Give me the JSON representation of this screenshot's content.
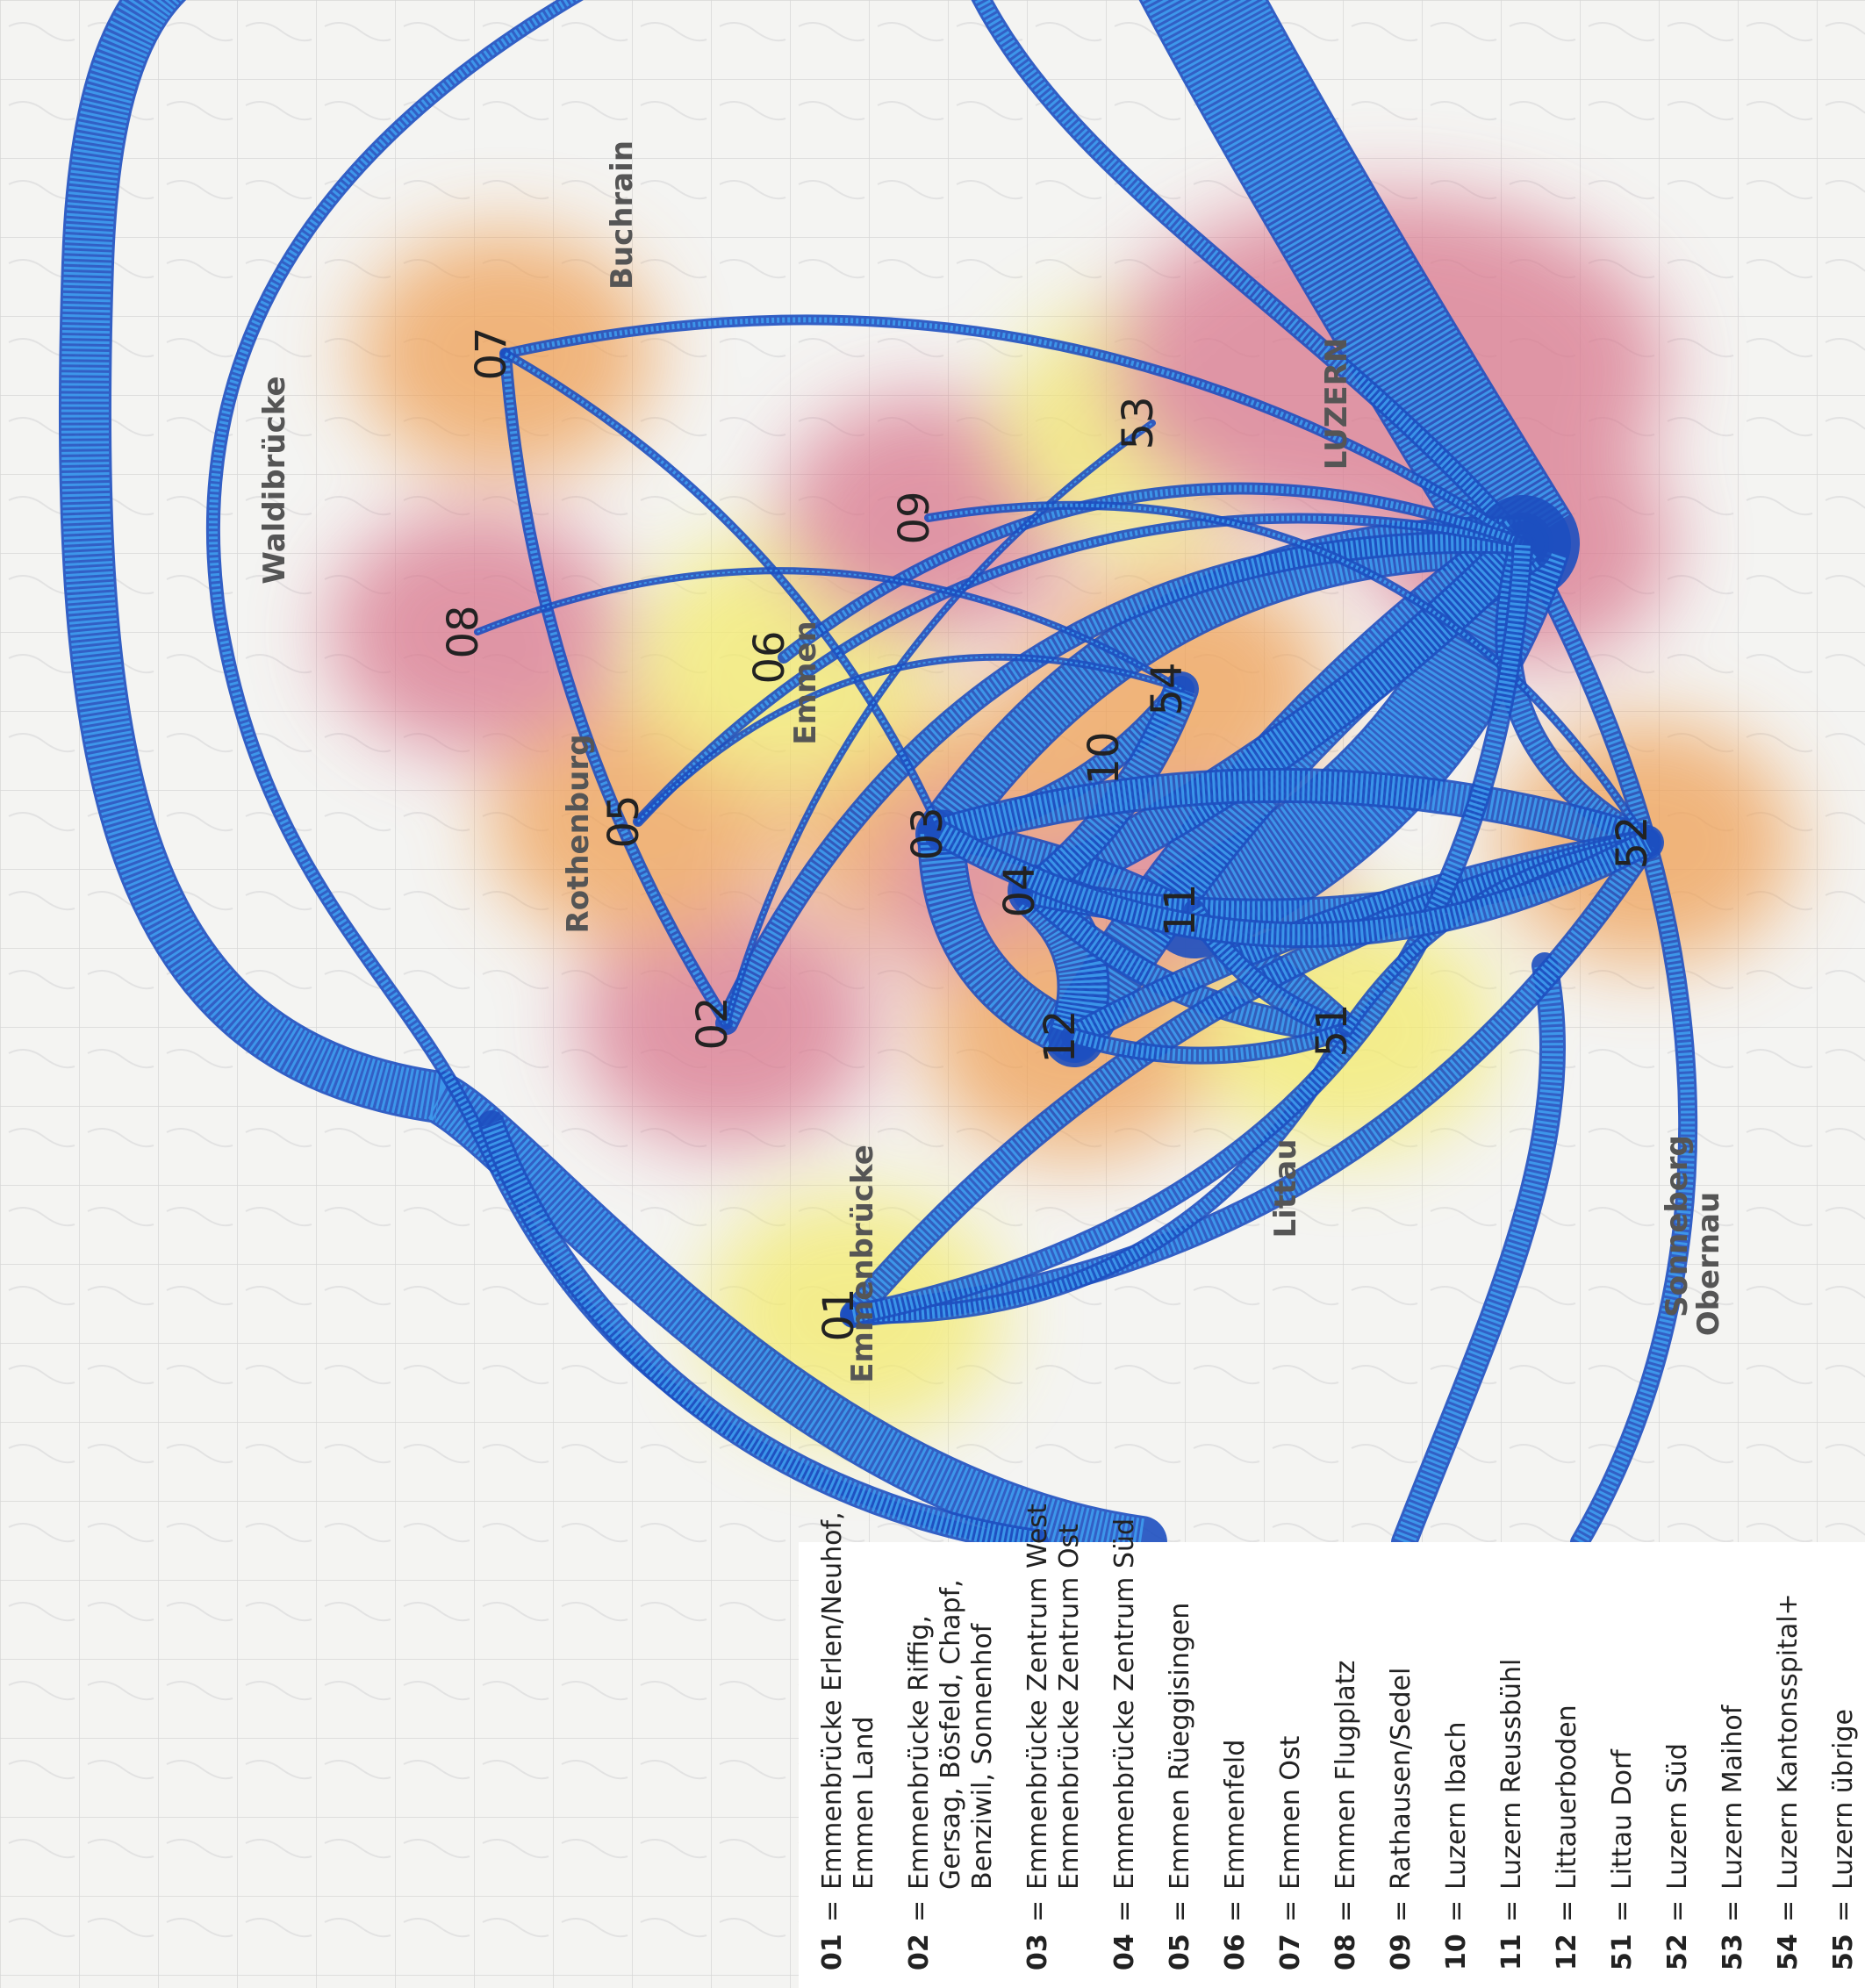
{
  "legend": {
    "separator": "=",
    "zones": [
      {
        "id": "01",
        "name": [
          "Emmenbrücke Erlen/Neuhof,",
          "Emmen Land"
        ]
      },
      {
        "id": "02",
        "name": [
          "Emmenbrücke Riffig,",
          "Gersag, Bösfeld, Chapf,",
          "Benziwil, Sonnenhof"
        ]
      },
      {
        "id": "03",
        "name": [
          "Emmenbrücke Zentrum West",
          "Emmenbrücke Zentrum Ost"
        ]
      },
      {
        "id": "04",
        "name": [
          "Emmenbrücke Zentrum Süd"
        ]
      },
      {
        "id": "05",
        "name": [
          "Emmen Rüeggisingen"
        ]
      },
      {
        "id": "06",
        "name": [
          "Emmenfeld"
        ]
      },
      {
        "id": "07",
        "name": [
          "Emmen Ost"
        ]
      },
      {
        "id": "08",
        "name": [
          "Emmen Flugplatz"
        ]
      },
      {
        "id": "09",
        "name": [
          "Rathausen/Sedel"
        ]
      },
      {
        "id": "10",
        "name": [
          "Luzern Ibach"
        ]
      },
      {
        "id": "11",
        "name": [
          "Luzern Reussbühl"
        ]
      },
      {
        "id": "12",
        "name": [
          "Littauerboden"
        ]
      },
      {
        "id": "51",
        "name": [
          "Littau Dorf"
        ]
      },
      {
        "id": "52",
        "name": [
          "Luzern Süd"
        ]
      },
      {
        "id": "53",
        "name": [
          "Luzern Maihof"
        ]
      },
      {
        "id": "54",
        "name": [
          "Luzern Kantonsspital+"
        ]
      },
      {
        "id": "55",
        "name": [
          "Luzern übrige"
        ]
      }
    ]
  },
  "map": {
    "places": [
      "Emmenbrücke",
      "Rothenburg",
      "LUZERN",
      "Emmen",
      "Buchrain",
      "Littau",
      "Obernau",
      "Waldibrücke",
      "Sonneberg"
    ]
  }
}
